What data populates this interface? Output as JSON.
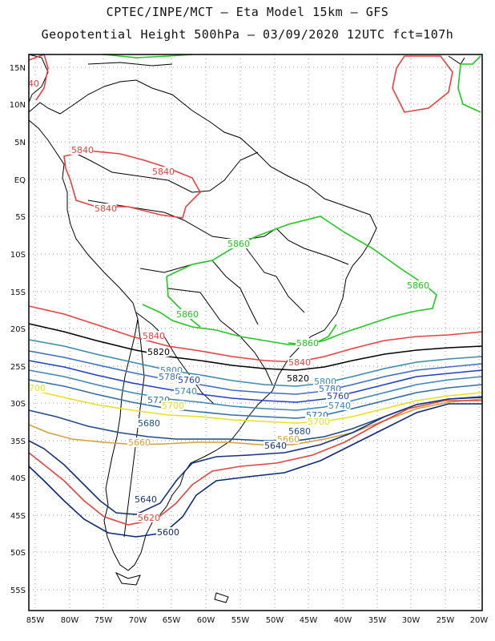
{
  "header": {
    "line1": "CPTEC/INPE/MCT –  Eta Model 15km – GFS",
    "line2": "Geopotential Height 500hPa – 03/09/2020 12UTC fct=107h"
  },
  "axes": {
    "lat_labels": [
      "15N",
      "10N",
      "5N",
      "EQ",
      "5S",
      "10S",
      "15S",
      "20S",
      "25S",
      "30S",
      "35S",
      "40S",
      "45S",
      "50S",
      "55S"
    ],
    "lon_labels": [
      "85W",
      "80W",
      "75W",
      "70W",
      "65W",
      "60W",
      "55W",
      "50W",
      "45W",
      "40W",
      "35W",
      "30W",
      "25W",
      "20W"
    ]
  },
  "colors": {
    "5600": "#0a2a78",
    "5620": "#e0443c",
    "5640": "#16347a",
    "5660": "#d7a03a",
    "5680": "#1f4a8c",
    "5700": "#e8e020",
    "5720": "#2f6fa6",
    "5740": "#3a86b8",
    "5760": "#2040c8",
    "5780": "#3a6fc0",
    "5800": "#3a8ab0",
    "5820": "#000000",
    "5840": "#e84040",
    "5860": "#20c820"
  },
  "contour_labels": [
    {
      "text": "5840",
      "color": "5840"
    },
    {
      "text": "5840",
      "color": "5840"
    },
    {
      "text": "5840",
      "color": "5840"
    },
    {
      "text": "5840",
      "color": "5840"
    },
    {
      "text": "5840",
      "color": "5840"
    },
    {
      "text": "40",
      "color": "5840"
    },
    {
      "text": "5860",
      "color": "5860"
    },
    {
      "text": "5860",
      "color": "5860"
    },
    {
      "text": "5860",
      "color": "5860"
    },
    {
      "text": "5860",
      "color": "5860"
    },
    {
      "text": "5820",
      "color": "5820"
    },
    {
      "text": "5820",
      "color": "5820"
    },
    {
      "text": "5800",
      "color": "5800"
    },
    {
      "text": "5800",
      "color": "5800"
    },
    {
      "text": "5780",
      "color": "5780"
    },
    {
      "text": "5780",
      "color": "5780"
    },
    {
      "text": "5760",
      "color": "5760"
    },
    {
      "text": "5760",
      "color": "5760"
    },
    {
      "text": "5740",
      "color": "5740"
    },
    {
      "text": "5740",
      "color": "5740"
    },
    {
      "text": "5720",
      "color": "5720"
    },
    {
      "text": "5720",
      "color": "5720"
    },
    {
      "text": "5700",
      "color": "5700"
    },
    {
      "text": "5700",
      "color": "5700"
    },
    {
      "text": "700",
      "color": "5700"
    },
    {
      "text": "5680",
      "color": "5680"
    },
    {
      "text": "5680",
      "color": "5680"
    },
    {
      "text": "5660",
      "color": "5660"
    },
    {
      "text": "5660",
      "color": "5660"
    },
    {
      "text": "5640",
      "color": "5640"
    },
    {
      "text": "5640",
      "color": "5640"
    },
    {
      "text": "5620",
      "color": "5620"
    },
    {
      "text": "5600",
      "color": "5600"
    }
  ]
}
